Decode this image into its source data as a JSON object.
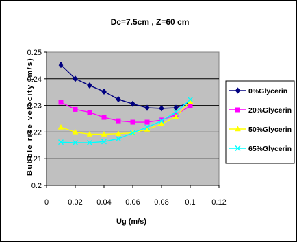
{
  "chart_data": {
    "type": "line",
    "title": "Dc=7.5cm , Z=60 cm",
    "xlabel": "Ug (m/s)",
    "ylabel": "Bubble rise velocity (m/s)",
    "xlim": [
      0,
      0.12
    ],
    "ylim": [
      0.2,
      0.25
    ],
    "x_ticks": [
      "0",
      "0.02",
      "0.04",
      "0.06",
      "0.08",
      "0.1",
      "0.12"
    ],
    "y_ticks": [
      "0.2",
      "0.21",
      "0.22",
      "0.23",
      "0.24",
      "0.25"
    ],
    "grid": "horizontal",
    "plot_background": "#c0c0c0",
    "legend_position": "right",
    "x": [
      0.01,
      0.02,
      0.03,
      0.04,
      0.05,
      0.06,
      0.07,
      0.08,
      0.09,
      0.1
    ],
    "series": [
      {
        "name": "0%Glycerin",
        "color": "#000080",
        "marker": "diamond",
        "values": [
          0.2452,
          0.24,
          0.2375,
          0.2352,
          0.2323,
          0.2306,
          0.2291,
          0.2289,
          0.2291,
          0.2313
        ]
      },
      {
        "name": "20%Glycerin",
        "color": "#ff00ff",
        "marker": "square",
        "values": [
          0.2312,
          0.2285,
          0.2274,
          0.2255,
          0.2242,
          0.2237,
          0.2237,
          0.2245,
          0.2265,
          0.2298
        ]
      },
      {
        "name": "50%Glycerin",
        "color": "#ffff00",
        "marker": "triangle",
        "values": [
          0.2218,
          0.22,
          0.2192,
          0.2192,
          0.2194,
          0.2197,
          0.221,
          0.223,
          0.2257,
          0.2315
        ]
      },
      {
        "name": "65%Glycerin",
        "color": "#00ffff",
        "marker": "x",
        "values": [
          0.2162,
          0.216,
          0.216,
          0.2164,
          0.2175,
          0.2197,
          0.2218,
          0.2242,
          0.2275,
          0.2322
        ]
      }
    ]
  }
}
